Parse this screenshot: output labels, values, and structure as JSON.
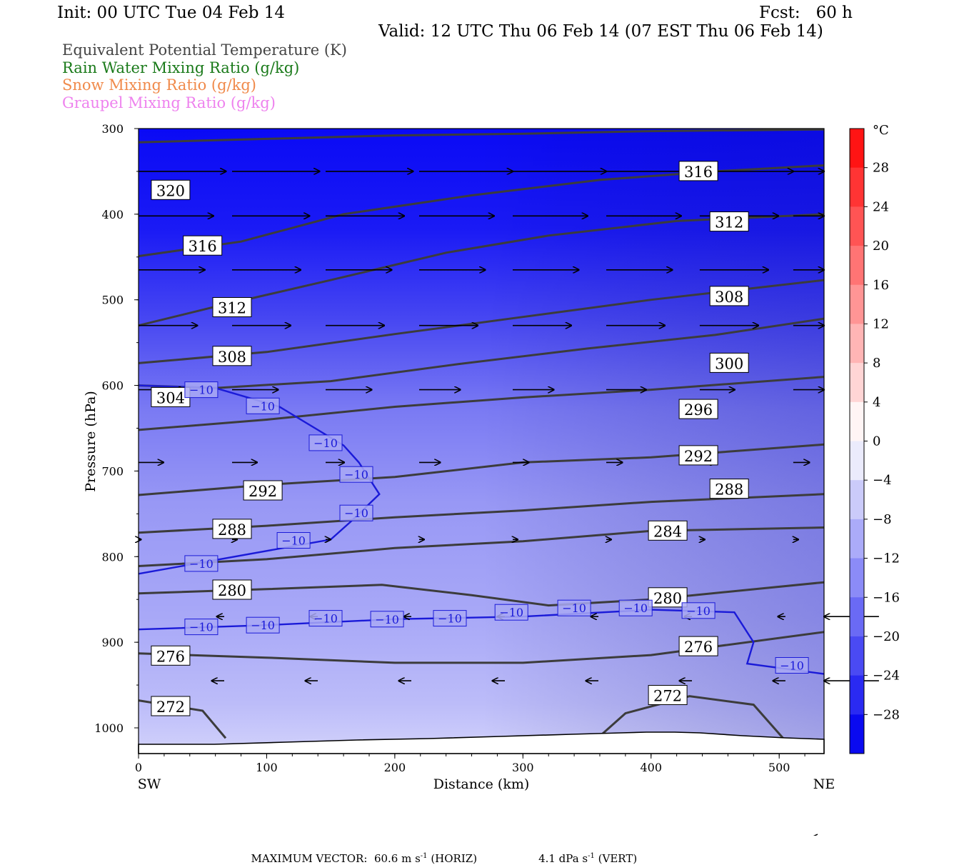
{
  "header": {
    "init": "Init: 00 UTC Tue 04 Feb 14",
    "fcst": "Fcst:   60 h",
    "valid": "Valid: 12 UTC Thu 06 Feb 14 (07 EST Thu 06 Feb 14)"
  },
  "legend": [
    {
      "label": "Equivalent Potential Temperature (K)",
      "color": "#444444"
    },
    {
      "label": "Rain Water Mixing Ratio (g/kg)",
      "color": "#1a7a1a"
    },
    {
      "label": "Snow Mixing Ratio (g/kg)",
      "color": "#f08a4b"
    },
    {
      "label": "Graupel Mixing Ratio (g/kg)",
      "color": "#ee82ee"
    }
  ],
  "chart_data": {
    "type": "cross-section",
    "xlabel": "Distance (km)",
    "ylabel": "Pressure (hPa)",
    "xlim": [
      0,
      535
    ],
    "ylim": [
      1030,
      300
    ],
    "x_ticks": [
      "0",
      "100",
      "200",
      "300",
      "400",
      "500"
    ],
    "x_tick_values": [
      0,
      100,
      200,
      300,
      400,
      500
    ],
    "y_ticks": [
      "300",
      "400",
      "500",
      "600",
      "700",
      "800",
      "900",
      "1000"
    ],
    "y_tick_values": [
      300,
      400,
      500,
      600,
      700,
      800,
      900,
      1000
    ],
    "left_end_label": "SW",
    "right_end_label": "NE",
    "colorbar": {
      "unit": "°C",
      "labels": [
        "28",
        "24",
        "20",
        "16",
        "12",
        "8",
        "4",
        "0",
        "−4",
        "−8",
        "−12",
        "−16",
        "−20",
        "−24",
        "−28"
      ],
      "values": [
        28,
        24,
        20,
        16,
        12,
        8,
        4,
        0,
        -4,
        -8,
        -12,
        -16,
        -20,
        -24,
        -28
      ]
    },
    "theta_e_contours": [
      {
        "label": "320",
        "points": [
          [
            0,
            316
          ],
          [
            100,
            312
          ],
          [
            200,
            308
          ],
          [
            300,
            306
          ],
          [
            400,
            303
          ],
          [
            535,
            301
          ]
        ],
        "labels_at": [
          [
            25,
            372
          ]
        ]
      },
      {
        "label": "316",
        "points": [
          [
            0,
            449
          ],
          [
            80,
            432
          ],
          [
            160,
            400
          ],
          [
            260,
            378
          ],
          [
            360,
            360
          ],
          [
            450,
            350
          ],
          [
            535,
            343
          ]
        ],
        "labels_at": [
          [
            50,
            437
          ],
          [
            437,
            350
          ]
        ]
      },
      {
        "label": "312",
        "points": [
          [
            0,
            530
          ],
          [
            60,
            508
          ],
          [
            150,
            477
          ],
          [
            240,
            445
          ],
          [
            320,
            425
          ],
          [
            420,
            408
          ],
          [
            535,
            400
          ]
        ],
        "labels_at": [
          [
            73,
            509
          ],
          [
            461,
            409
          ]
        ]
      },
      {
        "label": "308",
        "points": [
          [
            0,
            574
          ],
          [
            100,
            561
          ],
          [
            200,
            540
          ],
          [
            300,
            520
          ],
          [
            400,
            500
          ],
          [
            535,
            477
          ]
        ],
        "labels_at": [
          [
            73,
            566
          ],
          [
            461,
            496
          ]
        ]
      },
      {
        "label": "304",
        "points": [
          [
            0,
            600
          ],
          [
            60,
            603
          ]
        ],
        "labels_at": [
          [
            25,
            614
          ]
        ]
      },
      {
        "label": "300",
        "points": [
          [
            60,
            603
          ],
          [
            150,
            595
          ],
          [
            250,
            575
          ],
          [
            350,
            557
          ],
          [
            450,
            541
          ],
          [
            535,
            522
          ]
        ],
        "labels_at": [
          [
            461,
            574
          ]
        ]
      },
      {
        "label": "296",
        "points": [
          [
            0,
            652
          ],
          [
            100,
            640
          ],
          [
            200,
            625
          ],
          [
            300,
            614
          ],
          [
            400,
            605
          ],
          [
            535,
            590
          ]
        ],
        "labels_at": [
          [
            437,
            628
          ]
        ]
      },
      {
        "label": "292",
        "points": [
          [
            0,
            728
          ],
          [
            100,
            716
          ],
          [
            200,
            707
          ],
          [
            300,
            690
          ],
          [
            400,
            684
          ],
          [
            535,
            669
          ]
        ],
        "labels_at": [
          [
            97,
            723
          ],
          [
            437,
            682
          ]
        ]
      },
      {
        "label": "288",
        "points": [
          [
            0,
            772
          ],
          [
            100,
            764
          ],
          [
            200,
            754
          ],
          [
            300,
            746
          ],
          [
            400,
            736
          ],
          [
            535,
            727
          ]
        ],
        "labels_at": [
          [
            73,
            768
          ],
          [
            461,
            721
          ]
        ]
      },
      {
        "label": "284",
        "points": [
          [
            0,
            811
          ],
          [
            100,
            803
          ],
          [
            200,
            790
          ],
          [
            300,
            782
          ],
          [
            400,
            770
          ],
          [
            535,
            766
          ]
        ],
        "labels_at": [
          [
            413,
            770
          ]
        ]
      },
      {
        "label": "280",
        "points": [
          [
            0,
            843
          ],
          [
            100,
            838
          ],
          [
            190,
            833
          ],
          [
            260,
            845
          ],
          [
            320,
            857
          ],
          [
            400,
            850
          ],
          [
            535,
            830
          ]
        ],
        "labels_at": [
          [
            73,
            839
          ],
          [
            413,
            848
          ]
        ]
      },
      {
        "label": "276",
        "points": [
          [
            0,
            913
          ],
          [
            100,
            918
          ],
          [
            200,
            924
          ],
          [
            300,
            924
          ],
          [
            400,
            915
          ],
          [
            535,
            888
          ]
        ],
        "labels_at": [
          [
            25,
            916
          ],
          [
            437,
            905
          ]
        ]
      },
      {
        "label": "272",
        "points": [
          [
            0,
            968
          ],
          [
            50,
            980
          ],
          [
            68,
            1012
          ]
        ],
        "labels_at": [
          [
            25,
            975
          ]
        ]
      },
      {
        "label": "272",
        "points": [
          [
            362,
            1007
          ],
          [
            380,
            983
          ],
          [
            430,
            963
          ],
          [
            480,
            973
          ],
          [
            503,
            1012
          ]
        ],
        "labels_at": [
          [
            413,
            962
          ]
        ]
      }
    ],
    "temperature_contours": [
      {
        "label": "−10",
        "points": [
          [
            0,
            600
          ],
          [
            60,
            603
          ],
          [
            110,
            625
          ],
          [
            160,
            670
          ],
          [
            172,
            690
          ],
          [
            188,
            727
          ],
          [
            165,
            760
          ],
          [
            150,
            780
          ],
          [
            0,
            820
          ]
        ]
      },
      {
        "label": "−10",
        "points": [
          [
            0,
            885
          ],
          [
            100,
            880
          ],
          [
            200,
            873
          ],
          [
            300,
            870
          ],
          [
            400,
            862
          ],
          [
            465,
            865
          ],
          [
            480,
            900
          ],
          [
            475,
            925
          ],
          [
            535,
            937
          ]
        ]
      }
    ],
    "temperature_labels": [
      {
        "text": "−10",
        "at": [
          49,
          605
        ]
      },
      {
        "text": "−10",
        "at": [
          97,
          624
        ]
      },
      {
        "text": "−10",
        "at": [
          146,
          667
        ]
      },
      {
        "text": "−10",
        "at": [
          170,
          704
        ]
      },
      {
        "text": "−10",
        "at": [
          170,
          749
        ]
      },
      {
        "text": "−10",
        "at": [
          121,
          781
        ]
      },
      {
        "text": "−10",
        "at": [
          49,
          808
        ]
      },
      {
        "text": "−10",
        "at": [
          49,
          882
        ]
      },
      {
        "text": "−10",
        "at": [
          97,
          880
        ]
      },
      {
        "text": "−10",
        "at": [
          146,
          872
        ]
      },
      {
        "text": "−10",
        "at": [
          194,
          873
        ]
      },
      {
        "text": "−10",
        "at": [
          243,
          872
        ]
      },
      {
        "text": "−10",
        "at": [
          291,
          865
        ]
      },
      {
        "text": "−10",
        "at": [
          340,
          860
        ]
      },
      {
        "text": "−10",
        "at": [
          388,
          860
        ]
      },
      {
        "text": "−10",
        "at": [
          437,
          863
        ]
      },
      {
        "text": "−10",
        "at": [
          510,
          927
        ]
      }
    ],
    "wind_vectors": {
      "x_positions": [
        0,
        73,
        146,
        219,
        292,
        365,
        438,
        511
      ],
      "rows": [
        {
          "p": 350,
          "u": [
            70,
            70,
            70,
            75,
            75,
            75,
            75,
            75
          ],
          "v": [
            0,
            0,
            0,
            0,
            0,
            0,
            0,
            0
          ]
        },
        {
          "p": 402,
          "u": [
            60,
            62,
            63,
            60,
            60,
            60,
            63,
            65
          ],
          "v": [
            0,
            0,
            0,
            0,
            0,
            0,
            0,
            0
          ]
        },
        {
          "p": 465,
          "u": [
            53,
            55,
            53,
            53,
            53,
            53,
            55,
            55
          ],
          "v": [
            0,
            0,
            0,
            0,
            0,
            0,
            0,
            0
          ]
        },
        {
          "p": 530,
          "u": [
            47,
            47,
            47,
            47,
            47,
            47,
            47,
            47
          ],
          "v": [
            0,
            0,
            0,
            0,
            0,
            0,
            0,
            0
          ]
        },
        {
          "p": 605,
          "u": [
            37,
            37,
            37,
            33,
            33,
            32,
            28,
            25
          ],
          "v": [
            0,
            0,
            0,
            0,
            0,
            0,
            0,
            0
          ]
        },
        {
          "p": 690,
          "u": [
            20,
            20,
            15,
            17,
            13,
            13,
            13,
            13
          ],
          "v": [
            0,
            0,
            0,
            0,
            0,
            0,
            0,
            0
          ]
        },
        {
          "p": 780,
          "u": [
            2,
            4,
            4,
            4,
            4,
            4,
            4,
            4
          ],
          "v": [
            0,
            0,
            0,
            0,
            0,
            0,
            0,
            0
          ]
        },
        {
          "p": 870,
          "u": [
            -6,
            -6,
            -6,
            -6,
            -6,
            -6,
            -6,
            -6
          ],
          "v": [
            0,
            0,
            0,
            0,
            0,
            0,
            0,
            0
          ]
        },
        {
          "p": 945,
          "u": [
            -10,
            -10,
            -10,
            -10,
            -10,
            -10,
            -10,
            -10
          ],
          "v": [
            0,
            0,
            0,
            0,
            0,
            0,
            0,
            0
          ]
        }
      ]
    }
  },
  "footer": {
    "max_vector_label": "MAXIMUM VECTOR:",
    "horiz": "60.6 m s",
    "horiz_exp": "-1",
    "horiz_tag": "(HORIZ)",
    "vert": "4.1 dPa s",
    "vert_exp": "-1",
    "vert_tag": "(VERT)"
  }
}
